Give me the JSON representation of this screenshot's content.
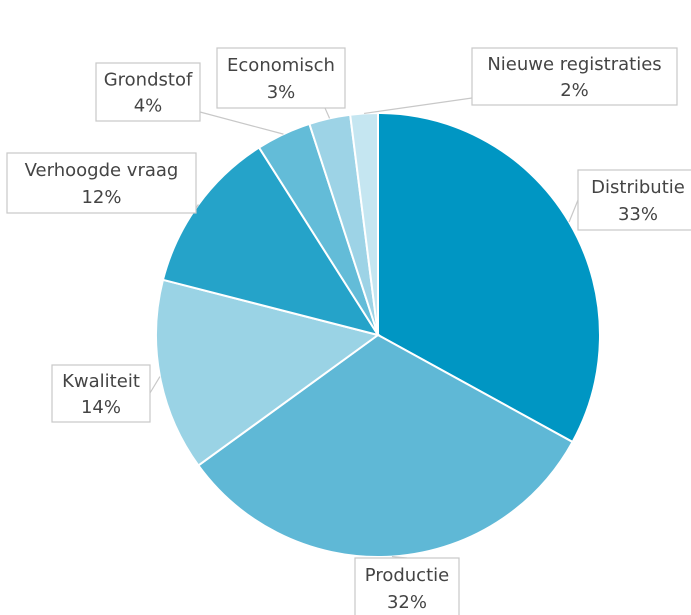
{
  "chart_data": {
    "type": "pie",
    "categories": [
      "Distributie",
      "Productie",
      "Kwaliteit",
      "Verhoogde vraag",
      "Grondstof",
      "Economisch",
      "Nieuwe registraties"
    ],
    "values": [
      33,
      32,
      14,
      12,
      4,
      3,
      2
    ],
    "value_labels": [
      "33%",
      "32%",
      "14%",
      "12%",
      "4%",
      "3%",
      "2%"
    ],
    "colors": [
      "#0096c3",
      "#5fb8d6",
      "#9ad3e5",
      "#25a3c9",
      "#63bcd8",
      "#9dd3e6",
      "#c5e6f1"
    ]
  }
}
